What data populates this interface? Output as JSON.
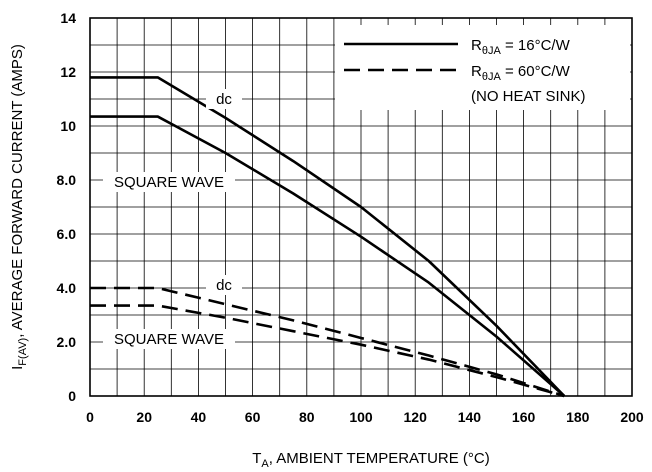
{
  "chart_data": {
    "type": "line",
    "title": "",
    "xlabel": {
      "prefix": "T",
      "sub": "A",
      "rest": ", AMBIENT TEMPERATURE (°C)"
    },
    "ylabel": {
      "prefix": "I",
      "sub": "F(AV)",
      "rest": ", AVERAGE FORWARD CURRENT (AMPS)"
    },
    "xlim": [
      0,
      200
    ],
    "ylim": [
      0,
      14
    ],
    "x_ticks": [
      "0",
      "20",
      "40",
      "60",
      "80",
      "100",
      "120",
      "140",
      "160",
      "180",
      "200"
    ],
    "y_ticks": [
      "0",
      "2.0",
      "4.0",
      "6.0",
      "8.0",
      "10",
      "12",
      "14"
    ],
    "grid": true,
    "legend": {
      "placement": "top-right",
      "entries": [
        {
          "style": "solid",
          "r": "R",
          "sub": "θJA",
          "rest": " = 16°C/W"
        },
        {
          "style": "dashed",
          "r": "R",
          "sub": "θJA",
          "rest": " = 60°C/W"
        }
      ],
      "note": "(NO HEAT SINK)"
    },
    "series": [
      {
        "style": "solid",
        "label": "dc",
        "points": [
          [
            0,
            11.8
          ],
          [
            25,
            11.8
          ],
          [
            50,
            10.3
          ],
          [
            75,
            8.7
          ],
          [
            100,
            7.0
          ],
          [
            125,
            5.0
          ],
          [
            150,
            2.6
          ],
          [
            175,
            0
          ]
        ]
      },
      {
        "style": "solid",
        "label": "SQUARE WAVE",
        "points": [
          [
            0,
            10.35
          ],
          [
            25,
            10.35
          ],
          [
            50,
            9.0
          ],
          [
            75,
            7.5
          ],
          [
            100,
            5.9
          ],
          [
            125,
            4.2
          ],
          [
            150,
            2.2
          ],
          [
            175,
            0
          ]
        ]
      },
      {
        "style": "dashed",
        "label": "dc",
        "points": [
          [
            0,
            4.0
          ],
          [
            25,
            4.0
          ],
          [
            50,
            3.4
          ],
          [
            75,
            2.8
          ],
          [
            100,
            2.15
          ],
          [
            125,
            1.5
          ],
          [
            150,
            0.8
          ],
          [
            175,
            0
          ]
        ]
      },
      {
        "style": "dashed",
        "label": "SQUARE WAVE",
        "points": [
          [
            0,
            3.35
          ],
          [
            25,
            3.35
          ],
          [
            50,
            2.9
          ],
          [
            75,
            2.4
          ],
          [
            100,
            1.9
          ],
          [
            125,
            1.35
          ],
          [
            150,
            0.7
          ],
          [
            175,
            0
          ]
        ]
      }
    ]
  }
}
